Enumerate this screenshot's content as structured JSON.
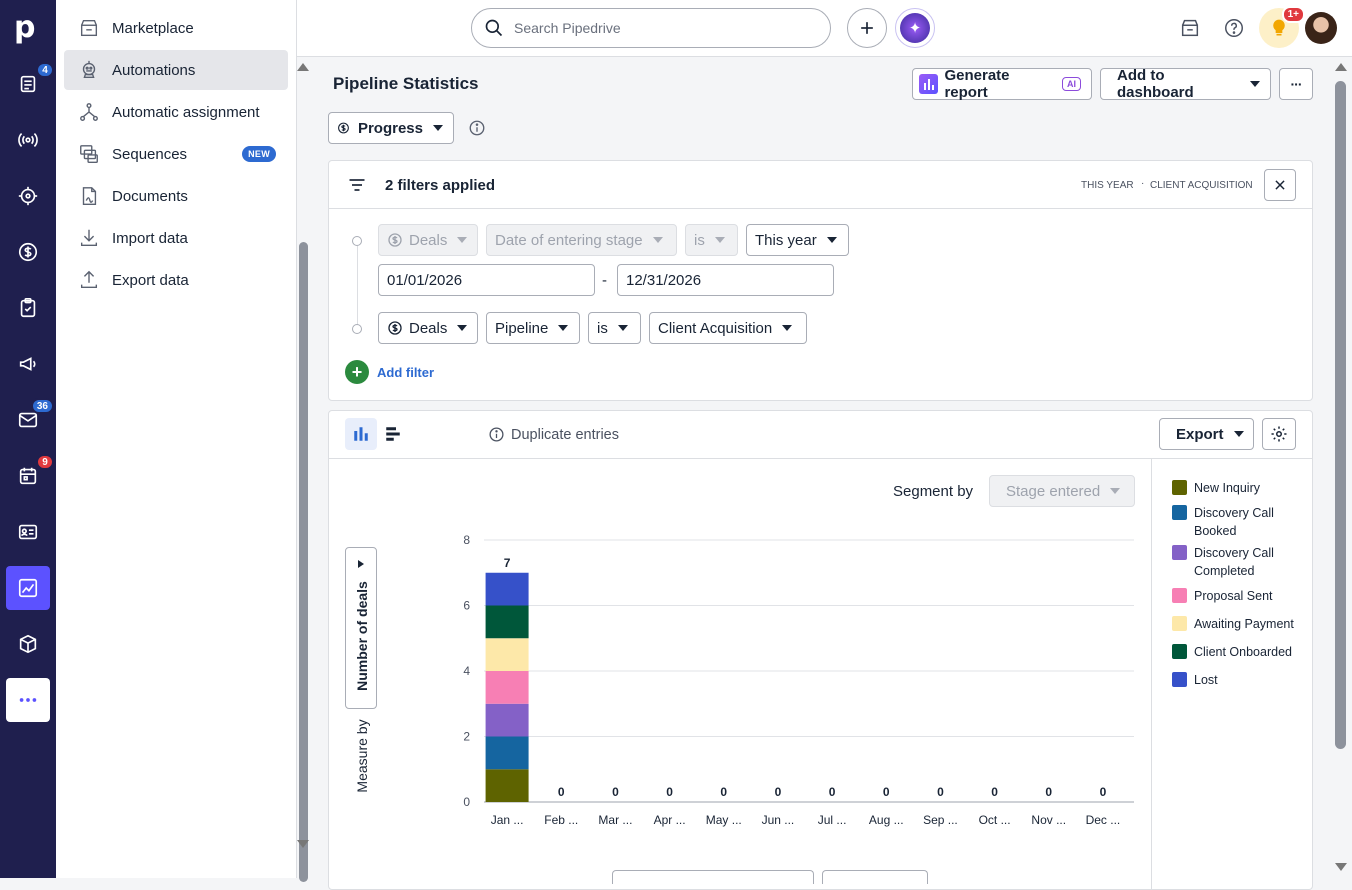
{
  "rail": {
    "logo": "p",
    "badges": {
      "deals_icon": "4",
      "mail": "36",
      "calendar": "9"
    }
  },
  "menu": {
    "items": [
      {
        "label": "Marketplace",
        "icon": "store-icon"
      },
      {
        "label": "Automations",
        "icon": "robot-icon",
        "selected": true
      },
      {
        "label": "Automatic assignment",
        "icon": "assignment-icon"
      },
      {
        "label": "Sequences",
        "icon": "sequences-icon",
        "badge": "NEW"
      },
      {
        "label": "Documents",
        "icon": "document-icon"
      },
      {
        "label": "Import data",
        "icon": "import-icon"
      },
      {
        "label": "Export data",
        "icon": "export-icon"
      }
    ]
  },
  "topbar": {
    "search_placeholder": "Search Pipedrive",
    "notif_badge": "1+"
  },
  "page": {
    "title": "Pipeline Statistics",
    "generate_report": "Generate report",
    "ai_label": "AI",
    "add_to_dashboard": "Add to dashboard",
    "more": "···",
    "view_type": "Progress"
  },
  "filters": {
    "summary": "2 filters applied",
    "tags": [
      "THIS YEAR",
      "CLIENT ACQUISITION"
    ],
    "row1": {
      "entity": "Deals",
      "field": "Date of entering stage",
      "operator": "is",
      "value": "This year"
    },
    "date_from": "01/01/2026",
    "date_sep": "-",
    "date_to": "12/31/2026",
    "row2": {
      "entity": "Deals",
      "field": "Pipeline",
      "operator": "is",
      "value": "Client Acquisition"
    },
    "add_filter": "Add filter"
  },
  "chart_panel": {
    "duplicate_entries": "Duplicate entries",
    "export": "Export",
    "segment_by_label": "Segment by",
    "segment_by_value": "Stage entered",
    "measure_by_label": "Measure by",
    "measure_by_value": "Number of deals"
  },
  "chart_data": {
    "type": "bar",
    "stacked": true,
    "categories": [
      "Jan ...",
      "Feb ...",
      "Mar ...",
      "Apr ...",
      "May ...",
      "Jun ...",
      "Jul ...",
      "Aug ...",
      "Sep ...",
      "Oct ...",
      "Nov ...",
      "Dec ..."
    ],
    "totals": [
      7,
      0,
      0,
      0,
      0,
      0,
      0,
      0,
      0,
      0,
      0,
      0
    ],
    "ylim": [
      0,
      8
    ],
    "yticks": [
      0,
      2,
      4,
      6,
      8
    ],
    "grid": true,
    "legend_position": "right",
    "series": [
      {
        "name": "New Inquiry",
        "color": "#5e6300",
        "values": [
          1,
          0,
          0,
          0,
          0,
          0,
          0,
          0,
          0,
          0,
          0,
          0
        ]
      },
      {
        "name": "Discovery Call Booked",
        "color": "#1565a0",
        "values": [
          1,
          0,
          0,
          0,
          0,
          0,
          0,
          0,
          0,
          0,
          0,
          0
        ]
      },
      {
        "name": "Discovery Call Completed",
        "color": "#8461c7",
        "values": [
          1,
          0,
          0,
          0,
          0,
          0,
          0,
          0,
          0,
          0,
          0,
          0
        ]
      },
      {
        "name": "Proposal Sent",
        "color": "#f77fb4",
        "values": [
          1,
          0,
          0,
          0,
          0,
          0,
          0,
          0,
          0,
          0,
          0,
          0
        ]
      },
      {
        "name": "Awaiting Payment",
        "color": "#fde8a9",
        "values": [
          1,
          0,
          0,
          0,
          0,
          0,
          0,
          0,
          0,
          0,
          0,
          0
        ]
      },
      {
        "name": "Client Onboarded",
        "color": "#00573a",
        "values": [
          1,
          0,
          0,
          0,
          0,
          0,
          0,
          0,
          0,
          0,
          0,
          0
        ]
      },
      {
        "name": "Lost",
        "color": "#3651c9",
        "values": [
          1,
          0,
          0,
          0,
          0,
          0,
          0,
          0,
          0,
          0,
          0,
          0
        ]
      }
    ]
  },
  "colors": {
    "rail": "#1f1f4e",
    "accent": "#5c52ff",
    "link": "#2d6ad1",
    "green": "#2b8a3e"
  }
}
